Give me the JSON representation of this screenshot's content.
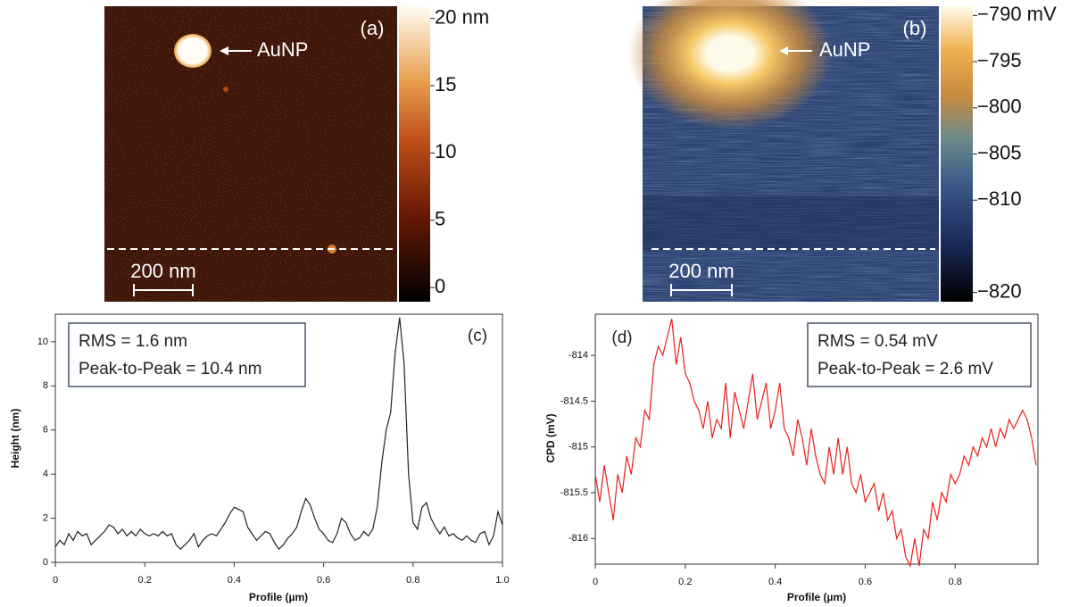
{
  "chart_data": [
    {
      "type": "image",
      "label": "(a)",
      "annotation": "AuNP",
      "scale_bar": "200 nm",
      "colorbar": {
        "lim": [
          -1.05,
          20.9
        ],
        "ticks": [
          0,
          5,
          10,
          15,
          {
            "value": 20,
            "label": "20 nm"
          }
        ]
      }
    },
    {
      "type": "image",
      "label": "(b)",
      "annotation": "AuNP",
      "scale_bar": "200 nm",
      "colorbar": {
        "lim": [
          -821,
          -789
        ],
        "ticks": [
          {
            "value": -820,
            "label": "−820"
          },
          {
            "value": -810,
            "label": "−810"
          },
          {
            "value": -805,
            "label": "−805"
          },
          {
            "value": -800,
            "label": "−800"
          },
          {
            "value": -795,
            "label": "−795"
          },
          {
            "value": -790,
            "label": "−790 mV"
          }
        ]
      }
    },
    {
      "type": "line",
      "label": "(c)",
      "xlabel": "Profile (µm)",
      "ylabel": "Height (nm)",
      "annotations": [
        "RMS = 1.6 nm",
        "Peak-to-Peak = 10.4 nm"
      ],
      "color": "#222222",
      "xlim": [
        0,
        1
      ],
      "xticks": [
        0,
        0.2,
        0.4,
        0.6,
        0.8,
        {
          "value": 1,
          "label": "1.0"
        }
      ],
      "ylim": [
        0,
        11.25
      ],
      "yticks": [
        0,
        2,
        4,
        6,
        8,
        10
      ],
      "x": [
        0,
        0.01,
        0.02,
        0.03,
        0.04,
        0.05,
        0.06,
        0.07,
        0.08,
        0.09,
        0.1,
        0.11,
        0.12,
        0.13,
        0.14,
        0.15,
        0.16,
        0.17,
        0.18,
        0.19,
        0.2,
        0.21,
        0.22,
        0.23,
        0.24,
        0.25,
        0.26,
        0.27,
        0.28,
        0.29,
        0.3,
        0.31,
        0.32,
        0.33,
        0.34,
        0.35,
        0.36,
        0.37,
        0.38,
        0.39,
        0.4,
        0.41,
        0.42,
        0.43,
        0.44,
        0.45,
        0.46,
        0.47,
        0.48,
        0.49,
        0.5,
        0.51,
        0.52,
        0.53,
        0.54,
        0.55,
        0.56,
        0.57,
        0.58,
        0.59,
        0.6,
        0.61,
        0.62,
        0.63,
        0.64,
        0.65,
        0.66,
        0.67,
        0.68,
        0.69,
        0.7,
        0.71,
        0.72,
        0.73,
        0.74,
        0.75,
        0.76,
        0.77,
        0.78,
        0.79,
        0.8,
        0.81,
        0.82,
        0.83,
        0.84,
        0.85,
        0.86,
        0.87,
        0.88,
        0.89,
        0.9,
        0.91,
        0.92,
        0.93,
        0.94,
        0.95,
        0.96,
        0.97,
        0.98,
        0.99,
        1
      ],
      "values": [
        0.7,
        1.0,
        0.8,
        1.3,
        1.0,
        1.4,
        1.2,
        1.3,
        0.8,
        1.0,
        1.2,
        1.4,
        1.7,
        1.6,
        1.3,
        1.5,
        1.2,
        1.4,
        1.2,
        1.5,
        1.3,
        1.2,
        1.3,
        1.2,
        1.4,
        1.2,
        1.3,
        0.8,
        0.6,
        0.8,
        1.0,
        1.3,
        0.7,
        1.0,
        1.2,
        1.3,
        1.2,
        1.5,
        1.8,
        2.2,
        2.5,
        2.4,
        2.3,
        1.6,
        1.3,
        1.0,
        1.2,
        1.4,
        1.3,
        0.9,
        0.6,
        0.8,
        1.1,
        1.3,
        1.6,
        2.3,
        2.9,
        2.6,
        2.0,
        1.5,
        1.3,
        1.0,
        0.9,
        1.3,
        2.0,
        1.8,
        1.3,
        1.0,
        1.1,
        1.4,
        1.2,
        1.5,
        2.5,
        4.5,
        6.0,
        6.8,
        9.5,
        11.1,
        9.0,
        4.0,
        1.8,
        1.5,
        2.5,
        2.7,
        2.0,
        1.6,
        1.3,
        1.6,
        1.2,
        1.3,
        1.1,
        1.0,
        1.2,
        1.0,
        0.9,
        1.3,
        1.4,
        0.8,
        1.2,
        2.3,
        1.7
      ]
    },
    {
      "type": "line",
      "label": "(d)",
      "xlabel": "Profile (µm)",
      "ylabel": "CPD (mV)",
      "annotations": [
        "RMS = 0.54 mV",
        "Peak-to-Peak = 2.6 mV"
      ],
      "color": "#e8201c",
      "xlim": [
        0,
        0.984
      ],
      "xticks": [
        0,
        0.2,
        0.4,
        0.6,
        0.8
      ],
      "ylim": [
        -816.28,
        -813.55
      ],
      "yticks": [
        -816,
        -815.5,
        -815,
        -814.5,
        -814
      ],
      "x": [
        0,
        0.01,
        0.02,
        0.03,
        0.04,
        0.05,
        0.06,
        0.07,
        0.08,
        0.09,
        0.1,
        0.11,
        0.12,
        0.13,
        0.14,
        0.15,
        0.16,
        0.17,
        0.18,
        0.19,
        0.2,
        0.21,
        0.22,
        0.23,
        0.24,
        0.25,
        0.26,
        0.27,
        0.28,
        0.29,
        0.3,
        0.31,
        0.32,
        0.33,
        0.34,
        0.35,
        0.36,
        0.37,
        0.38,
        0.39,
        0.4,
        0.41,
        0.42,
        0.43,
        0.44,
        0.45,
        0.46,
        0.47,
        0.48,
        0.49,
        0.5,
        0.51,
        0.52,
        0.53,
        0.54,
        0.55,
        0.56,
        0.57,
        0.58,
        0.59,
        0.6,
        0.61,
        0.62,
        0.63,
        0.64,
        0.65,
        0.66,
        0.67,
        0.68,
        0.69,
        0.7,
        0.71,
        0.72,
        0.73,
        0.74,
        0.75,
        0.76,
        0.77,
        0.78,
        0.79,
        0.8,
        0.81,
        0.82,
        0.83,
        0.84,
        0.85,
        0.86,
        0.87,
        0.88,
        0.89,
        0.9,
        0.91,
        0.92,
        0.93,
        0.94,
        0.95,
        0.96,
        0.97,
        0.98
      ],
      "values": [
        -815.3,
        -815.6,
        -815.2,
        -815.5,
        -815.8,
        -815.3,
        -815.5,
        -815.1,
        -815.3,
        -814.9,
        -815.0,
        -814.6,
        -814.7,
        -814.1,
        -813.9,
        -814.0,
        -813.8,
        -813.6,
        -814.1,
        -813.8,
        -814.2,
        -814.3,
        -814.5,
        -814.6,
        -814.8,
        -814.5,
        -814.9,
        -814.7,
        -814.8,
        -814.3,
        -814.9,
        -814.4,
        -814.6,
        -814.8,
        -814.5,
        -814.2,
        -814.7,
        -814.5,
        -814.3,
        -814.8,
        -814.6,
        -814.3,
        -814.8,
        -814.9,
        -815.1,
        -814.7,
        -814.9,
        -815.2,
        -814.8,
        -815.1,
        -815.3,
        -815.4,
        -815.0,
        -815.3,
        -814.9,
        -815.3,
        -815.0,
        -815.4,
        -815.5,
        -815.3,
        -815.6,
        -815.5,
        -815.4,
        -815.7,
        -815.5,
        -815.8,
        -815.7,
        -816.0,
        -815.9,
        -816.2,
        -816.3,
        -816.0,
        -816.3,
        -815.9,
        -816.0,
        -815.6,
        -815.8,
        -815.5,
        -815.6,
        -815.3,
        -815.4,
        -815.3,
        -815.1,
        -815.2,
        -815.0,
        -815.1,
        -814.9,
        -815.0,
        -814.8,
        -815.0,
        -814.8,
        -814.9,
        -814.7,
        -814.8,
        -814.7,
        -814.6,
        -814.7,
        -814.9,
        -815.2
      ]
    }
  ]
}
